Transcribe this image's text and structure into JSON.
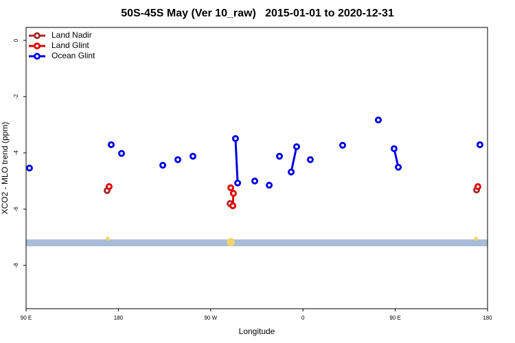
{
  "chart_data": {
    "type": "line",
    "title": "50S-45S May (Ver 10_raw)   2015-01-01 to 2020-12-31",
    "xlabel": "Longitude",
    "ylabel": "XCO2 - MLO trend (ppm)",
    "xlim": [
      90,
      540
    ],
    "ylim": [
      -9.54,
      0.46
    ],
    "xticks": [
      {
        "value": 90,
        "label": "90 E"
      },
      180,
      {
        "value": 270,
        "label": "90 W"
      },
      {
        "value": 360,
        "label": "0"
      },
      {
        "value": 450,
        "label": "90 E"
      },
      {
        "value": 540,
        "label": "180"
      }
    ],
    "yticks": [
      0,
      -2,
      -4,
      -6,
      -8
    ],
    "legend": "top-left",
    "series": [
      {
        "name": "Land Nadir",
        "color": "#a52a2a",
        "x": [
          169.0,
          null,
          288.9,
          null,
          529.3
        ],
        "values": [
          -5.34,
          null,
          -5.8,
          null,
          -5.32
        ]
      },
      {
        "name": "Land Glint",
        "color": "#e00000",
        "x": [
          171.0,
          null,
          289.6,
          292.2,
          291.6,
          null,
          530.6
        ],
        "values": [
          -5.2,
          null,
          -5.24,
          -5.44,
          -5.88,
          null,
          -5.2
        ]
      },
      {
        "name": "Ocean Glint",
        "color": "#0000e0",
        "x": [
          93.3,
          null,
          173.0,
          null,
          183.1,
          null,
          223.3,
          null,
          238.0,
          null,
          252.7,
          null,
          294.2,
          296.3,
          null,
          313.0,
          null,
          327.1,
          null,
          337.1,
          null,
          348.5,
          353.8,
          null,
          367.2,
          null,
          398.7,
          null,
          433.5,
          null,
          448.9,
          453.0,
          null,
          532.6
        ],
        "values": [
          -4.54,
          null,
          -3.71,
          null,
          -4.02,
          null,
          -4.44,
          null,
          -4.24,
          null,
          -4.12,
          null,
          -3.49,
          -5.07,
          null,
          -5.0,
          null,
          -5.15,
          null,
          -4.12,
          null,
          -4.68,
          -3.78,
          null,
          -4.24,
          null,
          -3.73,
          null,
          -2.83,
          null,
          -3.85,
          -4.51,
          null,
          -3.71
        ]
      }
    ]
  }
}
